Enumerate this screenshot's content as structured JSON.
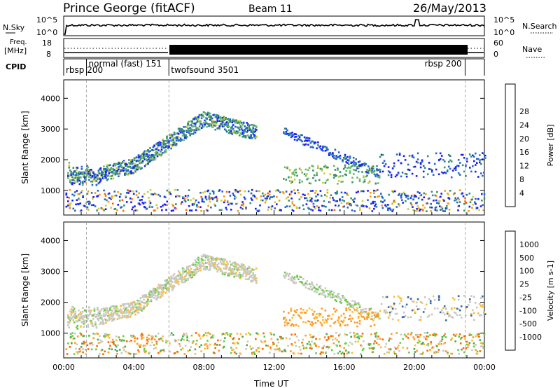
{
  "header": {
    "radar": "Prince George (fitACF)",
    "beam": "Beam 11",
    "date": "26/May/2013"
  },
  "top_panels": {
    "nsky_label": "N.Sky",
    "nsky_ticks": [
      "10^5",
      "10^0"
    ],
    "nsearch_label": "N.Search",
    "nsearch_ticks": [
      "10^5",
      "10^0"
    ],
    "freq_label": "Freq.",
    "freq_unit": "[MHz]",
    "freq_ticks": [
      "18",
      "8"
    ],
    "nave_label": "Nave",
    "nave_ticks": [
      "60",
      "0"
    ],
    "cpid_label": "CPID"
  },
  "cpid_segments": [
    {
      "name": "rbsp 200",
      "start_hr": 0.0,
      "end_hr": 1.3
    },
    {
      "name": "normal (fast) 151",
      "start_hr": 1.3,
      "end_hr": 6.0
    },
    {
      "name": "twofsound 3501",
      "start_hr": 6.0,
      "end_hr": 22.9
    },
    {
      "name": "rbsp 200",
      "start_hr": 22.9,
      "end_hr": 24.0
    }
  ],
  "chart_data": [
    {
      "type": "heatmap",
      "panel": "power",
      "xlabel": "",
      "ylabel": "Slant Range [km]",
      "yticks": [
        "1000",
        "2000",
        "3000",
        "4000"
      ],
      "ylim": [
        200,
        4600
      ],
      "xlim_hours": [
        0,
        24
      ],
      "colorbar_label": "Power [dB]",
      "colorbar_ticks": [
        "4",
        "8",
        "12",
        "16",
        "20",
        "24",
        "28"
      ],
      "colorbar_colors": [
        "#1a1aff",
        "#2266cc",
        "#3a8f6a",
        "#66bb66",
        "#cccc33",
        "#ff9900",
        "#ff6600",
        "#ff2200",
        "#dd0000"
      ]
    },
    {
      "type": "heatmap",
      "panel": "velocity",
      "xlabel": "Time UT",
      "ylabel": "Slant Range [km]",
      "yticks": [
        "1000",
        "2000",
        "3000",
        "4000"
      ],
      "ylim": [
        200,
        4600
      ],
      "xlim_hours": [
        0,
        24
      ],
      "xticks": [
        "00:00",
        "04:00",
        "08:00",
        "12:00",
        "16:00",
        "20:00",
        "00:00"
      ],
      "colorbar_label": "Velocity [m s-1]",
      "colorbar_ticks": [
        "1000",
        "500",
        "100",
        "25",
        "-25",
        "-100",
        "-500",
        "-1000"
      ],
      "colorbar_colors": [
        "#2233bb",
        "#3366aa",
        "#44aa55",
        "#66cc44",
        "#c8c8c0",
        "#ffbb33",
        "#ff9922",
        "#ff6600",
        "#ee0000"
      ]
    }
  ]
}
